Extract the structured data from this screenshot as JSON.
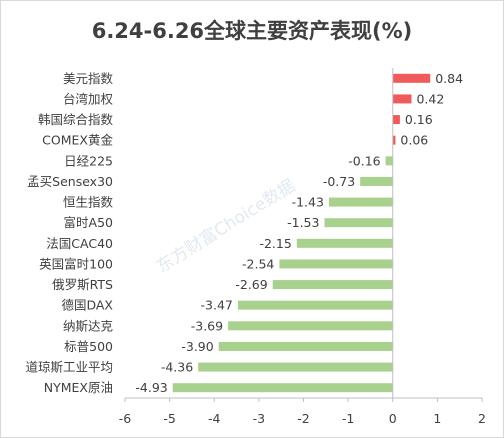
{
  "title": "6.24-6.26全球主要资产表现(%)",
  "watermark": "东方财富Choice数据",
  "colors": {
    "positive": "#f05a5a",
    "negative": "#a9d18e",
    "axis": "#bfbfbf",
    "text": "#404040"
  },
  "chart_data": {
    "type": "bar",
    "orientation": "horizontal",
    "title": "6.24-6.26全球主要资产表现(%)",
    "categories": [
      "美元指数",
      "台湾加权",
      "韩国综合指数",
      "COMEX黄金",
      "日经225",
      "孟买Sensex30",
      "恒生指数",
      "富时A50",
      "法国CAC40",
      "英国富时100",
      "俄罗斯RTS",
      "德国DAX",
      "纳斯达克",
      "标普500",
      "道琼斯工业平均",
      "NYMEX原油"
    ],
    "values": [
      0.84,
      0.42,
      0.16,
      0.06,
      -0.16,
      -0.73,
      -1.43,
      -1.53,
      -2.15,
      -2.54,
      -2.69,
      -3.47,
      -3.69,
      -3.9,
      -4.36,
      -4.93
    ],
    "value_labels": [
      "0.84",
      "0.42",
      "0.16",
      "0.06",
      "-0.16",
      "-0.73",
      "-1.43",
      "-1.53",
      "-2.15",
      "-2.54",
      "-2.69",
      "-3.47",
      "-3.69",
      "-3.90",
      "-4.36",
      "-4.93"
    ],
    "xlim": [
      -6,
      2
    ],
    "xticks": [
      -6,
      -5,
      -4,
      -3,
      -2,
      -1,
      0,
      1,
      2
    ],
    "grid": false,
    "legend": "none"
  }
}
